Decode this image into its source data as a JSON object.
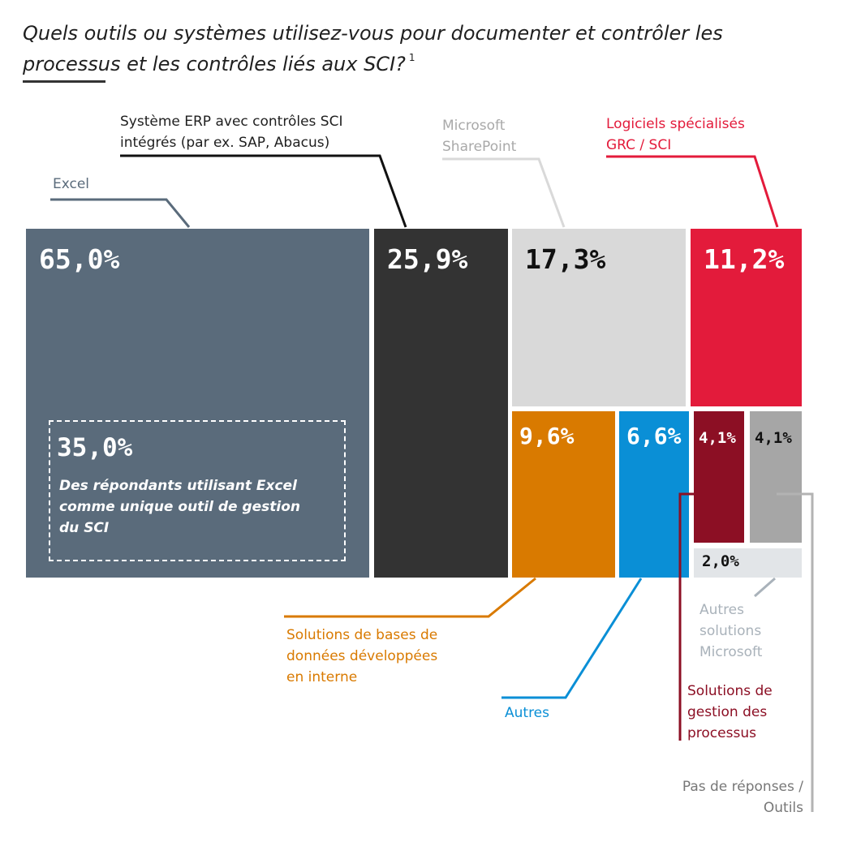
{
  "title": "Quels outils ou systèmes utilisez-vous pour documenter et contrôler les processus et les contrôles liés aux SCI?",
  "title_footnote": "1",
  "inset": {
    "value": "35,0%",
    "text": "Des répondants utilisant Excel comme unique outil de gestion du SCI"
  },
  "colors": {
    "excel": "#5a6b7b",
    "erp": "#333333",
    "sharepoint": "#d9d9d9",
    "grc": "#e31b3b",
    "db": "#d97a00",
    "autres": "#0a8fd6",
    "processus": "#8c0f24",
    "pas_de_reponses": "#a6a6a6",
    "autres_microsoft": "#e2e5e8"
  },
  "chart_data": {
    "type": "treemap",
    "title": "Quels outils ou systèmes utilisez-vous pour documenter et contrôler les processus et les contrôles liés aux SCI?",
    "unit": "%",
    "items": [
      {
        "key": "excel",
        "label": "Excel",
        "value": 65.0,
        "value_label": "65,0%",
        "lines": [
          "Excel"
        ]
      },
      {
        "key": "erp",
        "label": "Système ERP avec contrôles SCI intégrés (par ex. SAP, Abacus)",
        "value": 25.9,
        "value_label": "25,9%",
        "lines": [
          "Système ERP avec contrôles SCI",
          "intégrés (par ex. SAP, Abacus)"
        ]
      },
      {
        "key": "sharepoint",
        "label": "Microsoft SharePoint",
        "value": 17.3,
        "value_label": "17,3%",
        "lines": [
          "Microsoft",
          "SharePoint"
        ]
      },
      {
        "key": "grc",
        "label": "Logiciels spécialisés GRC / SCI",
        "value": 11.2,
        "value_label": "11,2%",
        "lines": [
          "Logiciels spécialisés",
          "GRC / SCI"
        ]
      },
      {
        "key": "db",
        "label": "Solutions de bases de données développées en interne",
        "value": 9.6,
        "value_label": "9,6%",
        "lines": [
          "Solutions de bases de",
          "données développées",
          "en interne"
        ]
      },
      {
        "key": "autres",
        "label": "Autres",
        "value": 6.6,
        "value_label": "6,6%",
        "lines": [
          "Autres"
        ]
      },
      {
        "key": "processus",
        "label": "Solutions de gestion des processus",
        "value": 4.1,
        "value_label": "4,1%",
        "lines": [
          "Solutions de",
          "gestion des",
          "processus"
        ]
      },
      {
        "key": "pas_de_reponses",
        "label": "Pas de réponses / Outils",
        "value": 4.1,
        "value_label": "4,1%",
        "lines": [
          "Pas de réponses /",
          "Outils"
        ]
      },
      {
        "key": "autres_microsoft",
        "label": "Autres solutions Microsoft",
        "value": 2.0,
        "value_label": "2,0%",
        "lines": [
          "Autres",
          "solutions",
          "Microsoft"
        ]
      }
    ]
  }
}
